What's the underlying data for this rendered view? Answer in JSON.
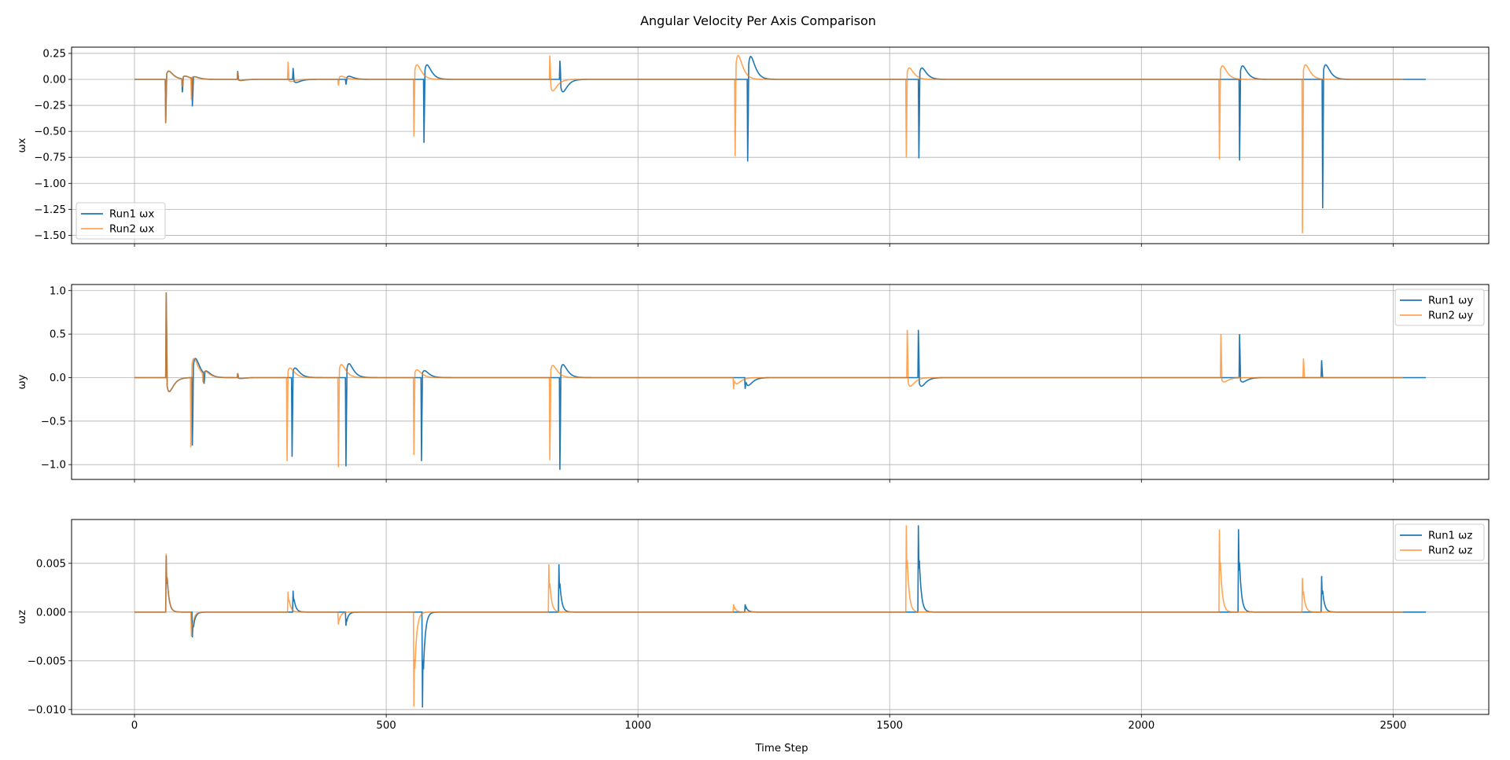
{
  "figure": {
    "title": "Angular Velocity Per Axis Comparison",
    "xlabel": "Time Step",
    "x_ticks": [
      0,
      500,
      1000,
      1500,
      2000,
      2500
    ],
    "x_range": [
      -125,
      2690
    ]
  },
  "colors": {
    "run1": "#1f77b4",
    "run2": "#ff7f0e"
  },
  "chart_data": [
    {
      "type": "line",
      "title": "Angular Velocity Per Axis Comparison",
      "ylabel": "ωx",
      "xlabel": "",
      "ylim": [
        -1.58,
        0.31
      ],
      "y_ticks": [
        0.25,
        0.0,
        -0.25,
        -0.5,
        -0.75,
        -1.0,
        -1.25,
        -1.5
      ],
      "y_tick_labels": [
        "0.25",
        "0.00",
        "−0.25",
        "−0.50",
        "−0.75",
        "−1.00",
        "−1.25",
        "−1.50"
      ],
      "legend_position": "lower left",
      "grid": true,
      "series": [
        {
          "name": "Run1 ωx",
          "events": [
            [
              62,
              -0.42,
              0.08
            ],
            [
              95,
              -0.13,
              0.03
            ],
            [
              115,
              -0.27,
              0.02
            ],
            [
              205,
              0.08,
              -0.01
            ],
            [
              315,
              0.11,
              -0.03
            ],
            [
              420,
              -0.05,
              0.03
            ],
            [
              575,
              -0.61,
              0.14
            ],
            [
              845,
              0.18,
              -0.12
            ],
            [
              1218,
              -0.79,
              0.22
            ],
            [
              1558,
              -0.76,
              0.11
            ],
            [
              2195,
              -0.78,
              0.13
            ],
            [
              2360,
              -1.24,
              0.14
            ]
          ],
          "x_end": 2565
        },
        {
          "name": "Run2 ωx",
          "events": [
            [
              62,
              -0.42,
              0.08
            ],
            [
              95,
              -0.08,
              0.03
            ],
            [
              113,
              -0.21,
              0.02
            ],
            [
              205,
              0.07,
              -0.01
            ],
            [
              305,
              0.17,
              -0.02
            ],
            [
              405,
              -0.06,
              0.03
            ],
            [
              555,
              -0.55,
              0.14
            ],
            [
              825,
              0.23,
              -0.11
            ],
            [
              1193,
              -0.74,
              0.23
            ],
            [
              1533,
              -0.75,
              0.11
            ],
            [
              2155,
              -0.77,
              0.13
            ],
            [
              2320,
              -1.48,
              0.14
            ]
          ],
          "x_end": 2520
        }
      ]
    },
    {
      "type": "line",
      "ylabel": "ωy",
      "xlabel": "",
      "ylim": [
        -1.17,
        1.07
      ],
      "y_ticks": [
        1.0,
        0.5,
        0.0,
        -0.5,
        -1.0
      ],
      "y_tick_labels": [
        "1.0",
        "0.5",
        "0.0",
        "−0.5",
        "−1.0"
      ],
      "legend_position": "upper right",
      "grid": true,
      "series": [
        {
          "name": "Run1 ωy",
          "events": [
            [
              63,
              0.98,
              -0.16
            ],
            [
              115,
              -0.78,
              0.22
            ],
            [
              138,
              -0.12,
              0.05
            ],
            [
              205,
              0.05,
              -0.01
            ],
            [
              313,
              -0.91,
              0.11
            ],
            [
              420,
              -1.02,
              0.16
            ],
            [
              570,
              -0.96,
              0.08
            ],
            [
              845,
              -1.06,
              0.15
            ],
            [
              1213,
              -0.13,
              -0.09
            ],
            [
              1557,
              0.55,
              -0.1
            ],
            [
              2195,
              0.5,
              -0.05
            ],
            [
              2358,
              0.2,
              0.0
            ]
          ],
          "x_end": 2565
        },
        {
          "name": "Run2 ωy",
          "events": [
            [
              63,
              0.98,
              -0.16
            ],
            [
              112,
              -0.8,
              0.22
            ],
            [
              136,
              -0.1,
              0.05
            ],
            [
              205,
              0.05,
              -0.01
            ],
            [
              303,
              -0.96,
              0.11
            ],
            [
              405,
              -1.03,
              0.15
            ],
            [
              555,
              -0.89,
              0.09
            ],
            [
              825,
              -0.95,
              0.14
            ],
            [
              1190,
              -0.13,
              -0.07
            ],
            [
              1535,
              0.55,
              -0.1
            ],
            [
              2158,
              0.5,
              -0.05
            ],
            [
              2322,
              0.22,
              0.0
            ]
          ],
          "x_end": 2520
        }
      ]
    },
    {
      "type": "line",
      "ylabel": "ωz",
      "xlabel": "Time Step",
      "ylim": [
        -0.0105,
        0.0095
      ],
      "y_ticks": [
        0.005,
        0.0,
        -0.005,
        -0.01
      ],
      "y_tick_labels": [
        "0.005",
        "0.000",
        "−0.005",
        "−0.010"
      ],
      "legend_position": "upper right",
      "grid": true,
      "series": [
        {
          "name": "Run1 ωz",
          "events": [
            [
              63,
              0.0058,
              0
            ],
            [
              115,
              -0.0026,
              0
            ],
            [
              315,
              0.0022,
              0
            ],
            [
              420,
              -0.0014,
              0
            ],
            [
              572,
              -0.0098,
              0
            ],
            [
              843,
              0.0049,
              0
            ],
            [
              1213,
              0.0008,
              0
            ],
            [
              1557,
              0.0089,
              0
            ],
            [
              2193,
              0.0085,
              0
            ],
            [
              2358,
              0.0037,
              0
            ]
          ],
          "x_end": 2565
        },
        {
          "name": "Run2 ωz",
          "events": [
            [
              63,
              0.006,
              0
            ],
            [
              113,
              -0.0025,
              0
            ],
            [
              305,
              0.0021,
              0
            ],
            [
              405,
              -0.0013,
              0
            ],
            [
              555,
              -0.0097,
              0
            ],
            [
              823,
              0.0049,
              0
            ],
            [
              1190,
              0.0008,
              0
            ],
            [
              1533,
              0.0089,
              0
            ],
            [
              2155,
              0.0085,
              0
            ],
            [
              2320,
              0.0035,
              0
            ]
          ],
          "x_end": 2520
        }
      ]
    }
  ]
}
